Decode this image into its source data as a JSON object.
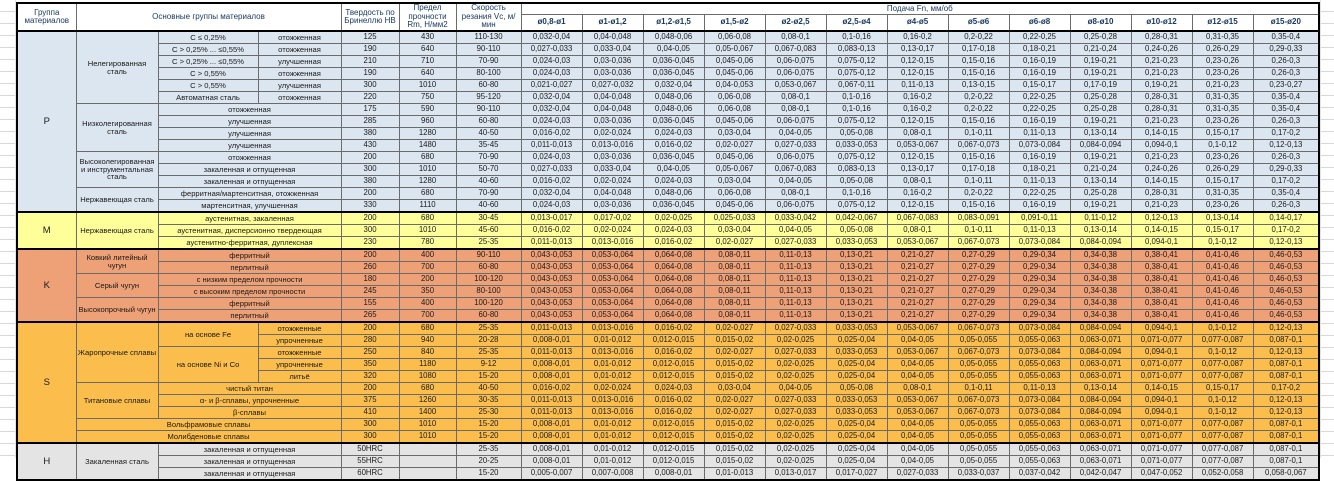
{
  "table": {
    "header": {
      "group": "Группа материалов",
      "main_groups": "Основные группы материалов",
      "hardness": "Твердость по Бринеллю HB",
      "strength": "Предел прочности Rm, Н/мм2",
      "speed": "Скорость резания Vc, м/мин",
      "feed": "Подача Fn, мм/об",
      "diameters": [
        "ø0,8-ø1",
        "ø1-ø1,2",
        "ø1,2-ø1,5",
        "ø1,5-ø2",
        "ø2-ø2,5",
        "ø2,5-ø4",
        "ø4-ø5",
        "ø5-ø6",
        "ø6-ø8",
        "ø8-ø10",
        "ø10-ø12",
        "ø12-ø15",
        "ø15-ø20"
      ]
    },
    "colors": {
      "group_p": "#dce6f1",
      "group_m": "#ffff99",
      "group_k": "#eea076",
      "group_s": "#fbbe4d",
      "group_h": "#e4e4e4"
    },
    "feed_patterns": {
      "A": [
        "0,032-0,04",
        "0,04-0,048",
        "0,048-0,06",
        "0,06-0,08",
        "0,08-0,1",
        "0,1-0,16",
        "0,16-0,2",
        "0,2-0,22",
        "0,22-0,25",
        "0,25-0,28",
        "0,28-0,31",
        "0,31-0,35",
        "0,35-0,4"
      ],
      "B": [
        "0,027-0,033",
        "0,033-0,04",
        "0,04-0,05",
        "0,05-0,067",
        "0,067-0,083",
        "0,083-0,13",
        "0,13-0,17",
        "0,17-0,18",
        "0,18-0,21",
        "0,21-0,24",
        "0,24-0,26",
        "0,26-0,29",
        "0,29-0,33"
      ],
      "C": [
        "0,024-0,03",
        "0,03-0,036",
        "0,036-0,045",
        "0,045-0,06",
        "0,06-0,075",
        "0,075-0,12",
        "0,12-0,15",
        "0,15-0,16",
        "0,16-0,19",
        "0,19-0,21",
        "0,21-0,23",
        "0,23-0,26",
        "0,26-0,3"
      ],
      "D": [
        "0,021-0,027",
        "0,027-0,032",
        "0,032-0,04",
        "0,04-0,053",
        "0,053-0,067",
        "0,067-0,11",
        "0,11-0,13",
        "0,13-0,15",
        "0,15-0,17",
        "0,17-0,19",
        "0,19-0,21",
        "0,21-0,23",
        "0,23-0,27"
      ],
      "E": [
        "0,016-0,02",
        "0,02-0,024",
        "0,024-0,03",
        "0,03-0,04",
        "0,04-0,05",
        "0,05-0,08",
        "0,08-0,1",
        "0,1-0,11",
        "0,11-0,13",
        "0,13-0,14",
        "0,14-0,15",
        "0,15-0,17",
        "0,17-0,2"
      ],
      "F": [
        "0,011-0,013",
        "0,013-0,016",
        "0,016-0,02",
        "0,02-0,027",
        "0,027-0,033",
        "0,033-0,053",
        "0,053-0,067",
        "0,067-0,073",
        "0,073-0,084",
        "0,084-0,094",
        "0,094-0,1",
        "0,1-0,12",
        "0,12-0,13"
      ],
      "G": [
        "0,013-0,017",
        "0,017-0,02",
        "0,02-0,025",
        "0,025-0,033",
        "0,033-0,042",
        "0,042-0,067",
        "0,067-0,083",
        "0,083-0,091",
        "0,091-0,11",
        "0,11-0,12",
        "0,12-0,13",
        "0,13-0,14",
        "0,14-0,17"
      ],
      "K": [
        "0,043-0,053",
        "0,053-0,064",
        "0,064-0,08",
        "0,08-0,11",
        "0,11-0,13",
        "0,13-0,21",
        "0,21-0,27",
        "0,27-0,29",
        "0,29-0,34",
        "0,34-0,38",
        "0,38-0,41",
        "0,41-0,46",
        "0,46-0,53"
      ],
      "H": [
        "0,008-0,01",
        "0,01-0,012",
        "0,012-0,015",
        "0,015-0,02",
        "0,02-0,025",
        "0,025-0,04",
        "0,04-0,05",
        "0,05-0,055",
        "0,055-0,063",
        "0,063-0,071",
        "0,071-0,077",
        "0,077-0,087",
        "0,087-0,1"
      ],
      "I": [
        "0,005-0,007",
        "0,007-0,008",
        "0,008-0,01",
        "0,01-0,013",
        "0,013-0,017",
        "0,017-0,027",
        "0,027-0,033",
        "0,033-0,037",
        "0,037-0,042",
        "0,042-0,047",
        "0,047-0,052",
        "0,052-0,058",
        "0,058-0,067"
      ]
    },
    "groups": [
      {
        "letter": "P",
        "cls": "p",
        "rows": [
          {
            "labels": [
              {
                "t": "Нелегированная сталь",
                "rs": 6
              },
              {
                "t": "C ≤ 0,25%"
              },
              {
                "t": "отожженная"
              }
            ],
            "hb": "125",
            "rm": "430",
            "vc": "110-130",
            "f": "A"
          },
          {
            "labels": [
              {
                "t": "C > 0,25% ... ≤0,55%"
              },
              {
                "t": "отожженная"
              }
            ],
            "hb": "190",
            "rm": "640",
            "vc": "90-110",
            "f": "B"
          },
          {
            "labels": [
              {
                "t": "C > 0,25% ... ≤0,55%"
              },
              {
                "t": "улучшенная"
              }
            ],
            "hb": "210",
            "rm": "710",
            "vc": "70-90",
            "f": "C"
          },
          {
            "labels": [
              {
                "t": "C > 0,55%"
              },
              {
                "t": "отожженная"
              }
            ],
            "hb": "190",
            "rm": "640",
            "vc": "80-100",
            "f": "C"
          },
          {
            "labels": [
              {
                "t": "C > 0,55%"
              },
              {
                "t": "улучшенная"
              }
            ],
            "hb": "300",
            "rm": "1010",
            "vc": "60-80",
            "f": "D"
          },
          {
            "labels": [
              {
                "t": "Автоматная сталь"
              },
              {
                "t": "отожженная"
              }
            ],
            "hb": "220",
            "rm": "750",
            "vc": "95-120",
            "f": "A"
          },
          {
            "labels": [
              {
                "t": "Низколегированная сталь",
                "rs": 4
              },
              {
                "t": "отожженная",
                "cs": 2
              }
            ],
            "hb": "175",
            "rm": "590",
            "vc": "90-110",
            "f": "A"
          },
          {
            "labels": [
              {
                "t": "улучшенная",
                "cs": 2
              }
            ],
            "hb": "285",
            "rm": "960",
            "vc": "60-80",
            "f": "C"
          },
          {
            "labels": [
              {
                "t": "улучшенная",
                "cs": 2
              }
            ],
            "hb": "380",
            "rm": "1280",
            "vc": "40-50",
            "f": "E"
          },
          {
            "labels": [
              {
                "t": "улучшенная",
                "cs": 2
              }
            ],
            "hb": "430",
            "rm": "1480",
            "vc": "35-45",
            "f": "F"
          },
          {
            "labels": [
              {
                "t": "Высоколегированная и инструментальная сталь",
                "rs": 3
              },
              {
                "t": "отожженная",
                "cs": 2
              }
            ],
            "hb": "200",
            "rm": "680",
            "vc": "70-90",
            "f": "C"
          },
          {
            "labels": [
              {
                "t": "закаленная и отпущенная",
                "cs": 2
              }
            ],
            "hb": "300",
            "rm": "1010",
            "vc": "50-70",
            "f": "B"
          },
          {
            "labels": [
              {
                "t": "закаленная и отпущенная",
                "cs": 2
              }
            ],
            "hb": "380",
            "rm": "1280",
            "vc": "40-60",
            "f": "E"
          },
          {
            "labels": [
              {
                "t": "Нержавеющая сталь",
                "rs": 2
              },
              {
                "t": "ферритная/мартенситная, отожженная",
                "cs": 2
              }
            ],
            "hb": "200",
            "rm": "680",
            "vc": "70-90",
            "f": "A"
          },
          {
            "labels": [
              {
                "t": "мартенситная, улучшенная",
                "cs": 2
              }
            ],
            "hb": "330",
            "rm": "1110",
            "vc": "40-60",
            "f": "C"
          }
        ]
      },
      {
        "letter": "M",
        "cls": "m",
        "rows": [
          {
            "labels": [
              {
                "t": "Нержавеющая сталь",
                "rs": 3
              },
              {
                "t": "аустенитная, закаленная",
                "cs": 2
              }
            ],
            "hb": "200",
            "rm": "680",
            "vc": "30-45",
            "f": "G"
          },
          {
            "labels": [
              {
                "t": "аустенитная, дисперсионно твердеющая",
                "cs": 2
              }
            ],
            "hb": "300",
            "rm": "1010",
            "vc": "45-60",
            "f": "E"
          },
          {
            "labels": [
              {
                "t": "аустенитно-ферритная, дуплексная",
                "cs": 2
              }
            ],
            "hb": "230",
            "rm": "780",
            "vc": "25-35",
            "f": "F"
          }
        ]
      },
      {
        "letter": "K",
        "cls": "k",
        "rows": [
          {
            "labels": [
              {
                "t": "Ковкий литейный чугун",
                "rs": 2
              },
              {
                "t": "ферритный",
                "cs": 2
              }
            ],
            "hb": "200",
            "rm": "400",
            "vc": "90-110",
            "f": "K"
          },
          {
            "labels": [
              {
                "t": "перлитный",
                "cs": 2
              }
            ],
            "hb": "260",
            "rm": "700",
            "vc": "60-80",
            "f": "K"
          },
          {
            "labels": [
              {
                "t": "Серый чугун",
                "rs": 2
              },
              {
                "t": "с низким пределом прочности",
                "cs": 2
              }
            ],
            "hb": "180",
            "rm": "200",
            "vc": "100-120",
            "f": "K"
          },
          {
            "labels": [
              {
                "t": "с высоким пределом прочности",
                "cs": 2
              }
            ],
            "hb": "245",
            "rm": "350",
            "vc": "80-100",
            "f": "K"
          },
          {
            "labels": [
              {
                "t": "Высокопрочный чугун",
                "rs": 2
              },
              {
                "t": "ферритный",
                "cs": 2
              }
            ],
            "hb": "155",
            "rm": "400",
            "vc": "100-120",
            "f": "K"
          },
          {
            "labels": [
              {
                "t": "перлитный",
                "cs": 2
              }
            ],
            "hb": "265",
            "rm": "700",
            "vc": "60-80",
            "f": "K"
          }
        ]
      },
      {
        "letter": "S",
        "cls": "s",
        "rows": [
          {
            "labels": [
              {
                "t": "Жаропрочные сплавы",
                "rs": 5
              },
              {
                "t": "на основе Fe",
                "rs": 2
              },
              {
                "t": "отожженные"
              }
            ],
            "hb": "200",
            "rm": "680",
            "vc": "25-35",
            "f": "F"
          },
          {
            "labels": [
              {
                "t": "упрочненные"
              }
            ],
            "hb": "280",
            "rm": "940",
            "vc": "20-28",
            "f": "H"
          },
          {
            "labels": [
              {
                "t": "на основе Ni и Co",
                "rs": 3
              },
              {
                "t": "отожженные"
              }
            ],
            "hb": "250",
            "rm": "840",
            "vc": "25-35",
            "f": "F"
          },
          {
            "labels": [
              {
                "t": "упрочненные"
              }
            ],
            "hb": "350",
            "rm": "1180",
            "vc": "9-12",
            "f": "H"
          },
          {
            "labels": [
              {
                "t": "литьё"
              }
            ],
            "hb": "320",
            "rm": "1080",
            "vc": "15-20",
            "f": "H"
          },
          {
            "labels": [
              {
                "t": "Титановые сплавы",
                "rs": 3
              },
              {
                "t": "чистый титан",
                "cs": 2
              }
            ],
            "hb": "200",
            "rm": "680",
            "vc": "40-50",
            "f": "E"
          },
          {
            "labels": [
              {
                "t": "α- и β-сплавы, упрочненные",
                "cs": 2
              }
            ],
            "hb": "375",
            "rm": "1260",
            "vc": "30-35",
            "f": "F"
          },
          {
            "labels": [
              {
                "t": "β-сплавы",
                "cs": 2
              }
            ],
            "hb": "410",
            "rm": "1400",
            "vc": "25-30",
            "f": "F"
          },
          {
            "labels": [
              {
                "t": "Вольфрамовые сплавы",
                "cs": 3
              }
            ],
            "hb": "300",
            "rm": "1010",
            "vc": "15-20",
            "f": "H"
          },
          {
            "labels": [
              {
                "t": "Молибденовые сплавы",
                "cs": 3
              }
            ],
            "hb": "300",
            "rm": "1010",
            "vc": "15-20",
            "f": "H"
          }
        ]
      },
      {
        "letter": "H",
        "cls": "h",
        "rows": [
          {
            "labels": [
              {
                "t": "Закаленная сталь",
                "rs": 3
              },
              {
                "t": "закаленная и отпущенная",
                "cs": 2
              }
            ],
            "hb": "50HRC",
            "rm": "",
            "vc": "25-35",
            "f": "H"
          },
          {
            "labels": [
              {
                "t": "закаленная и отпущенная",
                "cs": 2
              }
            ],
            "hb": "55HRC",
            "rm": "",
            "vc": "20-25",
            "f": "H"
          },
          {
            "labels": [
              {
                "t": "закаленная и отпущенная",
                "cs": 2
              }
            ],
            "hb": "60HRC",
            "rm": "",
            "vc": "15-20",
            "f": "I"
          }
        ]
      }
    ]
  }
}
